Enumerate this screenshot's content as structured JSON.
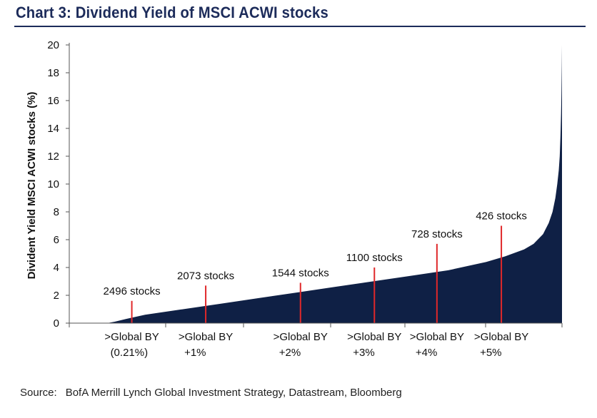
{
  "header": {
    "title": "Chart 3:  Dividend Yield of MSCI ACWI stocks"
  },
  "footer": {
    "source_label": "Source:",
    "source_text": "BofA Merrill Lynch Global Investment Strategy, Datastream, Bloomberg"
  },
  "colors": {
    "area": "#0f2045",
    "marker": "#e0282a",
    "axis": "#555555",
    "text": "#111111",
    "title": "#1c2b5a"
  },
  "chart_data": {
    "type": "area",
    "ylabel": "Divident Yield MSCI ACWI stocks (%)",
    "xlabel": "",
    "ylim": [
      0,
      20
    ],
    "yticks": [
      0,
      2,
      4,
      6,
      8,
      10,
      12,
      14,
      16,
      18,
      20
    ],
    "grid": false,
    "legend": "none",
    "x_count": 2600,
    "curve": [
      [
        0,
        0
      ],
      [
        200,
        0
      ],
      [
        240,
        0.1
      ],
      [
        300,
        0.3
      ],
      [
        400,
        0.6
      ],
      [
        600,
        1.0
      ],
      [
        800,
        1.4
      ],
      [
        1000,
        1.8
      ],
      [
        1200,
        2.2
      ],
      [
        1400,
        2.6
      ],
      [
        1600,
        3.0
      ],
      [
        1800,
        3.4
      ],
      [
        2000,
        3.8
      ],
      [
        2200,
        4.4
      ],
      [
        2300,
        4.8
      ],
      [
        2400,
        5.3
      ],
      [
        2450,
        5.7
      ],
      [
        2500,
        6.4
      ],
      [
        2530,
        7.2
      ],
      [
        2550,
        8.0
      ],
      [
        2565,
        9.0
      ],
      [
        2575,
        10.0
      ],
      [
        2583,
        11.0
      ],
      [
        2588,
        12.0
      ],
      [
        2592,
        13.5
      ],
      [
        2595,
        15.0
      ],
      [
        2597,
        16.5
      ],
      [
        2599,
        18.5
      ],
      [
        2600,
        20
      ]
    ],
    "thresholds": [
      {
        "x": 330,
        "label": "2496 stocks",
        "y_top": 1.6,
        "axis_label": [
          ">Global BY",
          "(0.21%)"
        ]
      },
      {
        "x": 720,
        "label": "2073 stocks",
        "y_top": 2.7,
        "axis_label": [
          ">Global BY",
          "+1%"
        ]
      },
      {
        "x": 1220,
        "label": "1544 stocks",
        "y_top": 2.9,
        "axis_label": [
          ">Global BY",
          "+2%"
        ]
      },
      {
        "x": 1610,
        "label": "1100 stocks",
        "y_top": 4.0,
        "axis_label": [
          ">Global BY",
          "+3%"
        ]
      },
      {
        "x": 1940,
        "label": "728 stocks",
        "y_top": 5.7,
        "axis_label": [
          ">Global BY",
          "+4%"
        ]
      },
      {
        "x": 2280,
        "label": "426 stocks",
        "y_top": 7.0,
        "axis_label": [
          ">Global BY",
          "+5%"
        ]
      }
    ]
  }
}
